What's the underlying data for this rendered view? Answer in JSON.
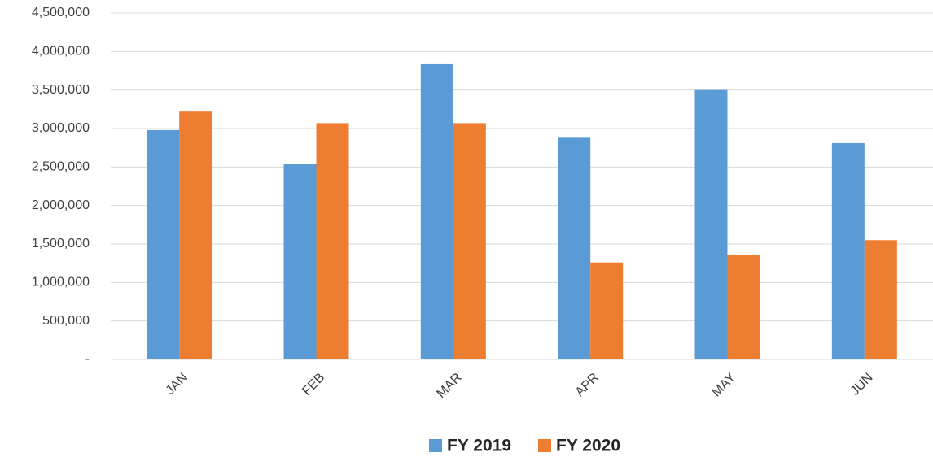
{
  "chart_data": {
    "type": "bar",
    "categories": [
      "JAN",
      "FEB",
      "MAR",
      "APR",
      "MAY",
      "JUN"
    ],
    "series": [
      {
        "name": "FY 2019",
        "color": "#5b9bd5",
        "values": [
          2980000,
          2535000,
          3835000,
          2880000,
          3500000,
          2810000
        ]
      },
      {
        "name": "FY 2020",
        "color": "#ed7d31",
        "values": [
          3220000,
          3070000,
          3070000,
          1260000,
          1360000,
          1550000
        ]
      }
    ],
    "ylim": [
      0,
      4500000
    ],
    "yticks": [
      {
        "value": 0,
        "label": "-"
      },
      {
        "value": 500000,
        "label": "500,000"
      },
      {
        "value": 1000000,
        "label": "1,000,000"
      },
      {
        "value": 1500000,
        "label": "1,500,000"
      },
      {
        "value": 2000000,
        "label": "2,000,000"
      },
      {
        "value": 2500000,
        "label": "2,500,000"
      },
      {
        "value": 3000000,
        "label": "3,000,000"
      },
      {
        "value": 3500000,
        "label": "3,500,000"
      },
      {
        "value": 4000000,
        "label": "4,000,000"
      },
      {
        "value": 4500000,
        "label": "4,500,000"
      }
    ],
    "grid": true,
    "legend": "bottom"
  }
}
